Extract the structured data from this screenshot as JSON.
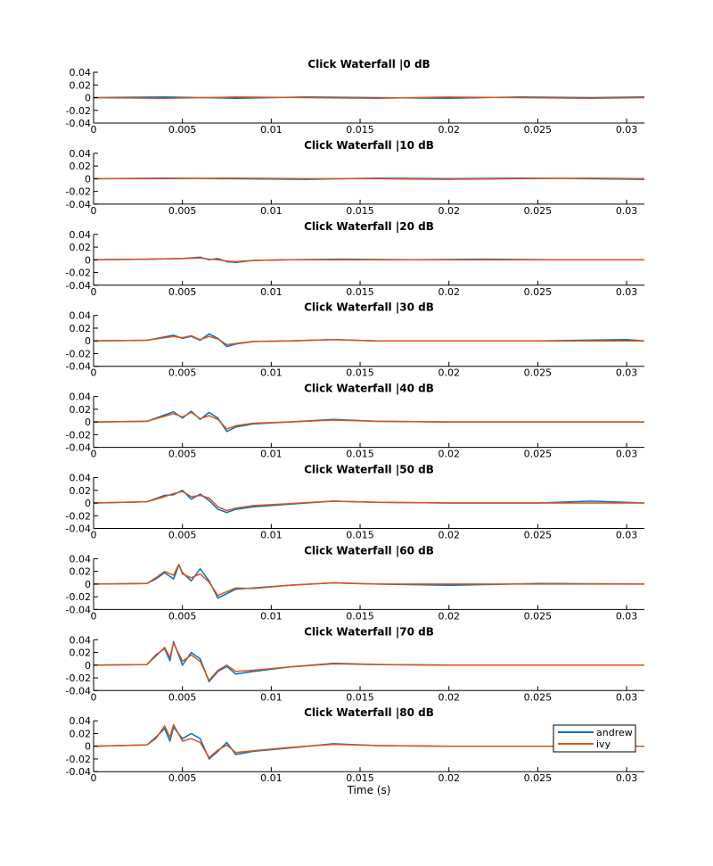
{
  "figure": {
    "xlabel": "Time (s)",
    "legend": {
      "location": "inside-bottom-right of last panel",
      "entries": [
        "andrew",
        "ivy"
      ]
    }
  },
  "colors": {
    "andrew": "#0072BD",
    "ivy": "#D95319",
    "axis": "#000000",
    "background": "#ffffff"
  },
  "chart_data": [
    {
      "type": "line",
      "title": "Click Waterfall |0 dB",
      "xlim": [
        0,
        0.031
      ],
      "ylim": [
        -0.04,
        0.04
      ],
      "xticks": [
        "0",
        "0.005",
        "0.01",
        "0.015",
        "0.02",
        "0.025",
        "0.03"
      ],
      "yticks": [
        "0.04",
        "0.02",
        "0",
        "-0.02",
        "-0.04"
      ],
      "series": [
        {
          "name": "andrew",
          "x": [
            0,
            0.004,
            0.008,
            0.012,
            0.016,
            0.02,
            0.024,
            0.028,
            0.031
          ],
          "y": [
            0,
            0.001,
            -0.001,
            0.001,
            0,
            -0.001,
            0.001,
            0,
            0.001
          ]
        },
        {
          "name": "ivy",
          "x": [
            0,
            0.004,
            0.008,
            0.012,
            0.016,
            0.02,
            0.024,
            0.028,
            0.031
          ],
          "y": [
            0,
            -0.001,
            0.001,
            0,
            -0.001,
            0.001,
            0,
            -0.001,
            0
          ]
        }
      ]
    },
    {
      "type": "line",
      "title": "Click Waterfall |10 dB",
      "xlim": [
        0,
        0.031
      ],
      "ylim": [
        -0.04,
        0.04
      ],
      "xticks": [
        "0",
        "0.005",
        "0.01",
        "0.015",
        "0.02",
        "0.025",
        "0.03"
      ],
      "yticks": [
        "0.04",
        "0.02",
        "0",
        "-0.02",
        "-0.04"
      ],
      "series": [
        {
          "name": "andrew",
          "x": [
            0,
            0.004,
            0.008,
            0.012,
            0.016,
            0.02,
            0.024,
            0.028,
            0.031
          ],
          "y": [
            0,
            0.001,
            0,
            -0.001,
            0.001,
            0,
            0.001,
            0,
            -0.001
          ]
        },
        {
          "name": "ivy",
          "x": [
            0,
            0.004,
            0.008,
            0.012,
            0.016,
            0.02,
            0.024,
            0.028,
            0.031
          ],
          "y": [
            0,
            0,
            0.001,
            0,
            0,
            -0.001,
            0,
            0.001,
            0
          ]
        }
      ]
    },
    {
      "type": "line",
      "title": "Click Waterfall |20 dB",
      "xlim": [
        0,
        0.031
      ],
      "ylim": [
        -0.04,
        0.04
      ],
      "xticks": [
        "0",
        "0.005",
        "0.01",
        "0.015",
        "0.02",
        "0.025",
        "0.03"
      ],
      "yticks": [
        "0.04",
        "0.02",
        "0",
        "-0.02",
        "-0.04"
      ],
      "series": [
        {
          "name": "andrew",
          "x": [
            0,
            0.003,
            0.005,
            0.006,
            0.0065,
            0.007,
            0.0075,
            0.008,
            0.009,
            0.011,
            0.014,
            0.018,
            0.022,
            0.026,
            0.031
          ],
          "y": [
            0,
            0.001,
            0.002,
            0.004,
            0,
            0.002,
            -0.003,
            -0.004,
            -0.001,
            0,
            0.001,
            0,
            0.001,
            0,
            0
          ]
        },
        {
          "name": "ivy",
          "x": [
            0,
            0.003,
            0.005,
            0.006,
            0.0065,
            0.007,
            0.0075,
            0.008,
            0.009,
            0.011,
            0.014,
            0.018,
            0.022,
            0.026,
            0.031
          ],
          "y": [
            0,
            0.001,
            0.002,
            0.003,
            0.001,
            0,
            -0.002,
            -0.003,
            -0.001,
            0,
            0,
            0,
            0,
            0,
            0
          ]
        }
      ]
    },
    {
      "type": "line",
      "title": "Click Waterfall |30 dB",
      "xlim": [
        0,
        0.031
      ],
      "ylim": [
        -0.04,
        0.04
      ],
      "xticks": [
        "0",
        "0.005",
        "0.01",
        "0.015",
        "0.02",
        "0.025",
        "0.03"
      ],
      "yticks": [
        "0.04",
        "0.02",
        "0",
        "-0.02",
        "-0.04"
      ],
      "series": [
        {
          "name": "andrew",
          "x": [
            0,
            0.003,
            0.0045,
            0.005,
            0.0055,
            0.006,
            0.0065,
            0.007,
            0.0075,
            0.008,
            0.009,
            0.011,
            0.0135,
            0.016,
            0.02,
            0.025,
            0.03,
            0.031
          ],
          "y": [
            0,
            0.001,
            0.009,
            0.004,
            0.007,
            0.001,
            0.011,
            0.004,
            -0.009,
            -0.005,
            -0.001,
            0,
            0.002,
            0,
            0,
            0,
            0.002,
            0
          ]
        },
        {
          "name": "ivy",
          "x": [
            0,
            0.003,
            0.0045,
            0.005,
            0.0055,
            0.006,
            0.0065,
            0.007,
            0.0075,
            0.008,
            0.009,
            0.011,
            0.0135,
            0.016,
            0.02,
            0.025,
            0.03,
            0.031
          ],
          "y": [
            0,
            0.001,
            0.007,
            0.005,
            0.008,
            0.002,
            0.007,
            0.003,
            -0.006,
            -0.004,
            -0.001,
            0,
            0.002,
            0,
            0,
            0,
            0,
            0
          ]
        }
      ]
    },
    {
      "type": "line",
      "title": "Click Waterfall |40 dB",
      "xlim": [
        0,
        0.031
      ],
      "ylim": [
        -0.04,
        0.04
      ],
      "xticks": [
        "0",
        "0.005",
        "0.01",
        "0.015",
        "0.02",
        "0.025",
        "0.03"
      ],
      "yticks": [
        "0.04",
        "0.02",
        "0",
        "-0.02",
        "-0.04"
      ],
      "series": [
        {
          "name": "andrew",
          "x": [
            0,
            0.003,
            0.0045,
            0.005,
            0.0055,
            0.006,
            0.0065,
            0.007,
            0.0075,
            0.008,
            0.009,
            0.011,
            0.0135,
            0.016,
            0.02,
            0.025,
            0.031
          ],
          "y": [
            0,
            0.001,
            0.016,
            0.006,
            0.017,
            0.004,
            0.015,
            0.006,
            -0.015,
            -0.008,
            -0.003,
            0,
            0.004,
            0.001,
            0,
            0,
            0
          ]
        },
        {
          "name": "ivy",
          "x": [
            0,
            0.003,
            0.0045,
            0.005,
            0.0055,
            0.006,
            0.0065,
            0.007,
            0.0075,
            0.008,
            0.009,
            0.011,
            0.0135,
            0.016,
            0.02,
            0.025,
            0.031
          ],
          "y": [
            0,
            0.001,
            0.013,
            0.008,
            0.015,
            0.005,
            0.01,
            0.004,
            -0.011,
            -0.006,
            -0.002,
            0,
            0.003,
            0.001,
            0,
            0,
            0
          ]
        }
      ]
    },
    {
      "type": "line",
      "title": "Click Waterfall |50 dB",
      "xlim": [
        0,
        0.031
      ],
      "ylim": [
        -0.04,
        0.04
      ],
      "xticks": [
        "0",
        "0.005",
        "0.01",
        "0.015",
        "0.02",
        "0.025",
        "0.03"
      ],
      "yticks": [
        "0.04",
        "0.02",
        "0",
        "-0.02",
        "-0.04"
      ],
      "series": [
        {
          "name": "andrew",
          "x": [
            0,
            0.003,
            0.004,
            0.0045,
            0.005,
            0.0055,
            0.006,
            0.0065,
            0.007,
            0.0075,
            0.008,
            0.009,
            0.011,
            0.0135,
            0.016,
            0.02,
            0.025,
            0.028,
            0.031
          ],
          "y": [
            0,
            0.002,
            0.012,
            0.013,
            0.02,
            0.006,
            0.014,
            0.004,
            -0.01,
            -0.015,
            -0.01,
            -0.006,
            -0.002,
            0.003,
            0.001,
            0,
            0,
            0.003,
            0
          ]
        },
        {
          "name": "ivy",
          "x": [
            0,
            0.003,
            0.004,
            0.0045,
            0.005,
            0.0055,
            0.006,
            0.0065,
            0.007,
            0.0075,
            0.008,
            0.009,
            0.011,
            0.0135,
            0.016,
            0.02,
            0.025,
            0.028,
            0.031
          ],
          "y": [
            0,
            0.002,
            0.01,
            0.015,
            0.018,
            0.01,
            0.012,
            0.008,
            -0.006,
            -0.012,
            -0.008,
            -0.004,
            -0.001,
            0.003,
            0.001,
            0,
            0,
            0,
            0
          ]
        }
      ]
    },
    {
      "type": "line",
      "title": "Click Waterfall |60 dB",
      "xlim": [
        0,
        0.031
      ],
      "ylim": [
        -0.04,
        0.04
      ],
      "xticks": [
        "0",
        "0.005",
        "0.01",
        "0.015",
        "0.02",
        "0.025",
        "0.03"
      ],
      "yticks": [
        "0.04",
        "0.02",
        "0",
        "-0.02",
        "-0.04"
      ],
      "series": [
        {
          "name": "andrew",
          "x": [
            0,
            0.003,
            0.0035,
            0.004,
            0.0045,
            0.0048,
            0.005,
            0.0055,
            0.006,
            0.0065,
            0.007,
            0.008,
            0.009,
            0.011,
            0.0135,
            0.016,
            0.02,
            0.025,
            0.031
          ],
          "y": [
            0,
            0.001,
            0.008,
            0.018,
            0.008,
            0.03,
            0.018,
            0.005,
            0.024,
            0.005,
            -0.022,
            -0.008,
            -0.006,
            -0.002,
            0.002,
            0,
            -0.002,
            0.001,
            0
          ]
        },
        {
          "name": "ivy",
          "x": [
            0,
            0.003,
            0.0035,
            0.004,
            0.0045,
            0.0048,
            0.005,
            0.0055,
            0.006,
            0.0065,
            0.007,
            0.008,
            0.009,
            0.011,
            0.0135,
            0.016,
            0.02,
            0.025,
            0.031
          ],
          "y": [
            0,
            0.001,
            0.01,
            0.02,
            0.014,
            0.031,
            0.016,
            0.01,
            0.016,
            0.003,
            -0.018,
            -0.006,
            -0.007,
            -0.002,
            0.002,
            0,
            0,
            0,
            0
          ]
        }
      ]
    },
    {
      "type": "line",
      "title": "Click Waterfall |70 dB",
      "xlim": [
        0,
        0.031
      ],
      "ylim": [
        -0.04,
        0.04
      ],
      "xticks": [
        "0",
        "0.005",
        "0.01",
        "0.015",
        "0.02",
        "0.025",
        "0.03"
      ],
      "yticks": [
        "0.04",
        "0.02",
        "0",
        "-0.02",
        "-0.04"
      ],
      "series": [
        {
          "name": "andrew",
          "x": [
            0,
            0.003,
            0.0035,
            0.004,
            0.0043,
            0.0045,
            0.005,
            0.0055,
            0.006,
            0.0065,
            0.007,
            0.0075,
            0.008,
            0.009,
            0.011,
            0.0135,
            0.016,
            0.02,
            0.025,
            0.031
          ],
          "y": [
            0,
            0.001,
            0.016,
            0.026,
            0.007,
            0.037,
            0,
            0.02,
            0.01,
            -0.026,
            -0.01,
            -0.002,
            -0.014,
            -0.01,
            -0.003,
            0.003,
            0.001,
            0,
            0,
            0
          ]
        },
        {
          "name": "ivy",
          "x": [
            0,
            0.003,
            0.0035,
            0.004,
            0.0043,
            0.0045,
            0.005,
            0.0055,
            0.006,
            0.0065,
            0.007,
            0.0075,
            0.008,
            0.009,
            0.011,
            0.0135,
            0.016,
            0.02,
            0.025,
            0.031
          ],
          "y": [
            0,
            0.001,
            0.014,
            0.028,
            0.012,
            0.035,
            0.006,
            0.016,
            0.006,
            -0.024,
            -0.008,
            0,
            -0.01,
            -0.008,
            -0.003,
            0.002,
            0.001,
            0,
            0,
            0
          ]
        }
      ]
    },
    {
      "type": "line",
      "title": "Click Waterfall |80 dB",
      "xlim": [
        0,
        0.031
      ],
      "ylim": [
        -0.04,
        0.04
      ],
      "xticks": [
        "0",
        "0.005",
        "0.01",
        "0.015",
        "0.02",
        "0.025",
        "0.03"
      ],
      "yticks": [
        "0.04",
        "0.02",
        "0",
        "-0.02",
        "-0.04"
      ],
      "series": [
        {
          "name": "andrew",
          "x": [
            0,
            0.003,
            0.0035,
            0.004,
            0.0043,
            0.0045,
            0.005,
            0.0055,
            0.006,
            0.0065,
            0.007,
            0.0075,
            0.008,
            0.009,
            0.011,
            0.0135,
            0.016,
            0.02,
            0.025,
            0.031
          ],
          "y": [
            0,
            0.002,
            0.014,
            0.028,
            0.008,
            0.03,
            0.012,
            0.02,
            0.012,
            -0.02,
            -0.008,
            0.006,
            -0.013,
            -0.008,
            -0.003,
            0.004,
            0.001,
            0,
            0,
            0
          ]
        },
        {
          "name": "ivy",
          "x": [
            0,
            0.003,
            0.0035,
            0.004,
            0.0043,
            0.0045,
            0.005,
            0.0055,
            0.006,
            0.0065,
            0.007,
            0.0075,
            0.008,
            0.009,
            0.011,
            0.0135,
            0.016,
            0.02,
            0.025,
            0.031
          ],
          "y": [
            0,
            0.002,
            0.012,
            0.032,
            0.014,
            0.034,
            0.008,
            0.012,
            0.006,
            -0.018,
            -0.006,
            0.002,
            -0.01,
            -0.007,
            -0.002,
            0.003,
            0.001,
            0,
            0,
            0
          ]
        }
      ]
    }
  ]
}
